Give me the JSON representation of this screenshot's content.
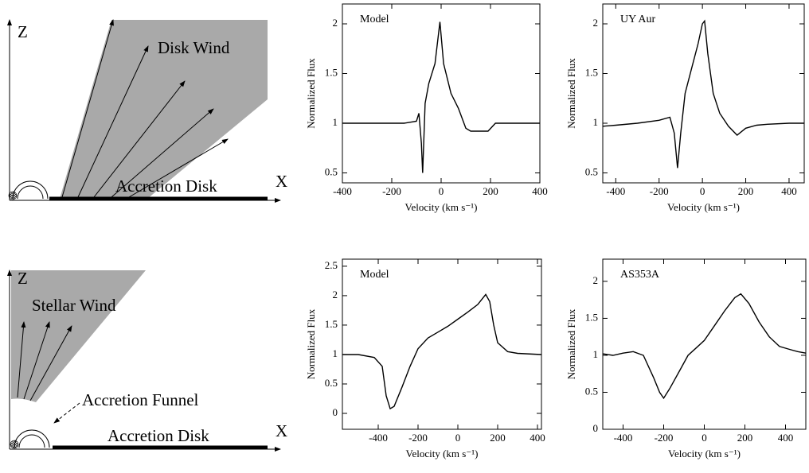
{
  "chart_data": [
    {
      "type": "line",
      "label": "Model",
      "xlabel": "Velocity (km s⁻¹)",
      "ylabel": "Normalized Flux",
      "xlim": [
        -400,
        400
      ],
      "ylim": [
        0.4,
        2.2
      ],
      "xticks": [
        -400,
        -200,
        0,
        200,
        400
      ],
      "yticks": [
        0.5,
        1,
        1.5,
        2
      ],
      "x": [
        -400,
        -150,
        -100,
        -90,
        -80,
        -75,
        -65,
        -50,
        -25,
        -5,
        10,
        40,
        70,
        100,
        120,
        160,
        190,
        220,
        400
      ],
      "values": [
        1,
        1,
        1.02,
        1.1,
        0.8,
        0.5,
        1.2,
        1.4,
        1.6,
        2.02,
        1.6,
        1.3,
        1.15,
        0.95,
        0.92,
        0.92,
        0.92,
        1.0,
        1.0
      ],
      "color": "#000000"
    },
    {
      "type": "line",
      "label": "UY Aur",
      "xlabel": "Velocity (km s⁻¹)",
      "ylabel": "Normalized Flux",
      "xlim": [
        -460,
        470
      ],
      "ylim": [
        0.4,
        2.2
      ],
      "xticks": [
        -400,
        -200,
        0,
        200,
        400
      ],
      "yticks": [
        0.5,
        1,
        1.5,
        2
      ],
      "x": [
        -460,
        -400,
        -300,
        -200,
        -150,
        -130,
        -115,
        -100,
        -80,
        -50,
        -20,
        0,
        10,
        25,
        50,
        80,
        120,
        160,
        200,
        250,
        300,
        400,
        470
      ],
      "values": [
        0.97,
        0.98,
        1.0,
        1.03,
        1.06,
        0.9,
        0.55,
        0.9,
        1.3,
        1.55,
        1.8,
        2.0,
        2.03,
        1.7,
        1.3,
        1.1,
        0.97,
        0.88,
        0.95,
        0.98,
        0.99,
        1.0,
        1.0
      ],
      "color": "#000000"
    },
    {
      "type": "line",
      "label": "Model",
      "xlabel": "Velocity (km s⁻¹)",
      "ylabel": "Normalized Flux",
      "xlim": [
        -580,
        420
      ],
      "ylim": [
        -0.27,
        2.62
      ],
      "xticks": [
        -400,
        -200,
        0,
        200,
        400
      ],
      "yticks": [
        0,
        0.5,
        1,
        1.5,
        2,
        2.5
      ],
      "x": [
        -580,
        -500,
        -420,
        -380,
        -360,
        -340,
        -320,
        -280,
        -240,
        -200,
        -150,
        -100,
        -50,
        0,
        50,
        100,
        140,
        160,
        180,
        200,
        250,
        300,
        420
      ],
      "values": [
        1.0,
        1.0,
        0.95,
        0.8,
        0.3,
        0.08,
        0.12,
        0.45,
        0.8,
        1.1,
        1.28,
        1.38,
        1.48,
        1.6,
        1.72,
        1.85,
        2.02,
        1.9,
        1.5,
        1.2,
        1.05,
        1.02,
        1.0
      ],
      "color": "#000000"
    },
    {
      "type": "line",
      "label": "AS353A",
      "xlabel": "Velocity (km s⁻¹)",
      "ylabel": "Normalized Flux",
      "xlim": [
        -500,
        500
      ],
      "ylim": [
        0,
        2.3
      ],
      "xticks": [
        -400,
        -200,
        0,
        200,
        400
      ],
      "yticks": [
        0,
        0.5,
        1,
        1.5,
        2
      ],
      "x": [
        -500,
        -450,
        -400,
        -350,
        -300,
        -250,
        -220,
        -200,
        -170,
        -120,
        -80,
        -40,
        0,
        50,
        100,
        150,
        180,
        220,
        270,
        320,
        370,
        420,
        460,
        500
      ],
      "values": [
        1.02,
        1.0,
        1.03,
        1.05,
        1.0,
        0.7,
        0.5,
        0.42,
        0.55,
        0.8,
        1.0,
        1.1,
        1.2,
        1.4,
        1.6,
        1.78,
        1.83,
        1.7,
        1.45,
        1.25,
        1.12,
        1.08,
        1.05,
        1.03
      ],
      "color": "#000000"
    }
  ],
  "diagrams": [
    {
      "z": "Z",
      "wind": "Disk Wind",
      "disk": "Accretion Disk",
      "x": "X"
    },
    {
      "z": "Z",
      "wind": "Stellar Wind",
      "funnel": "Accretion Funnel",
      "disk": "Accretion Disk",
      "x": "X"
    }
  ]
}
